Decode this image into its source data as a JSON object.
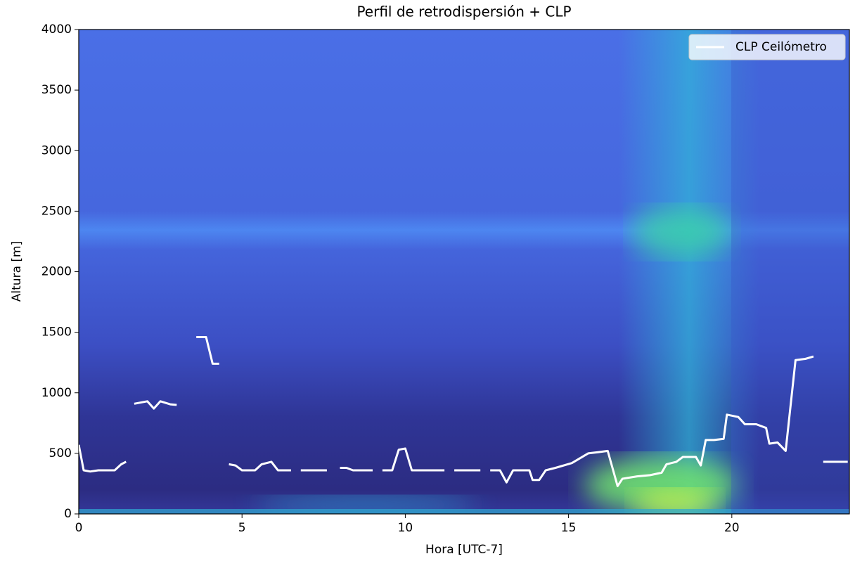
{
  "chart_data": {
    "type": "line",
    "title": "Perfil de retrodispersión + CLP",
    "x_label": "Hora [UTC-7]",
    "y_label": "Altura [m]",
    "xlim": [
      0,
      23.6
    ],
    "xticks": [
      0,
      5,
      10,
      15,
      20
    ],
    "ylim": [
      0,
      4000
    ],
    "yticks": [
      0,
      500,
      1000,
      1500,
      2000,
      2500,
      3000,
      3500,
      4000
    ],
    "legend_position": "upper right",
    "series": [
      {
        "name": "CLP Ceilómetro",
        "color": "#ffffff",
        "x": [
          0,
          0.15,
          0.35,
          0.6,
          1.1,
          1.3,
          1.45,
          1.55,
          1.7,
          2.1,
          2.3,
          2.5,
          2.8,
          3.0,
          3.3,
          3.6,
          3.9,
          4.1,
          4.3,
          4.45,
          4.6,
          4.8,
          5.0,
          5.4,
          5.6,
          5.9,
          6.1,
          6.5,
          6.65,
          6.8,
          7.6,
          7.8,
          8.0,
          8.2,
          8.4,
          9.0,
          9.15,
          9.3,
          9.6,
          9.8,
          10.0,
          10.2,
          11.2,
          11.35,
          11.5,
          12.3,
          12.45,
          12.6,
          12.9,
          13.1,
          13.3,
          13.8,
          13.9,
          14.1,
          14.3,
          14.6,
          15.1,
          15.6,
          15.9,
          16.2,
          16.5,
          16.65,
          17.1,
          17.5,
          17.85,
          18.0,
          18.3,
          18.5,
          18.9,
          19.05,
          19.2,
          19.45,
          19.75,
          19.85,
          20.2,
          20.4,
          20.75,
          21.05,
          21.15,
          21.4,
          21.65,
          21.95,
          22.25,
          22.5,
          22.65,
          22.8,
          23.55
        ],
        "values": [
          570,
          360,
          350,
          360,
          360,
          410,
          430,
          null,
          910,
          930,
          870,
          930,
          905,
          900,
          null,
          1460,
          1460,
          1240,
          1240,
          null,
          410,
          400,
          360,
          360,
          410,
          430,
          360,
          360,
          null,
          360,
          360,
          null,
          380,
          380,
          360,
          360,
          null,
          360,
          360,
          530,
          540,
          360,
          360,
          null,
          360,
          360,
          null,
          360,
          360,
          260,
          360,
          360,
          280,
          280,
          360,
          380,
          420,
          500,
          510,
          520,
          230,
          290,
          310,
          320,
          340,
          410,
          430,
          470,
          470,
          400,
          610,
          610,
          620,
          820,
          800,
          740,
          740,
          710,
          580,
          590,
          520,
          1270,
          1280,
          1300,
          null,
          430,
          430
        ]
      }
    ]
  }
}
